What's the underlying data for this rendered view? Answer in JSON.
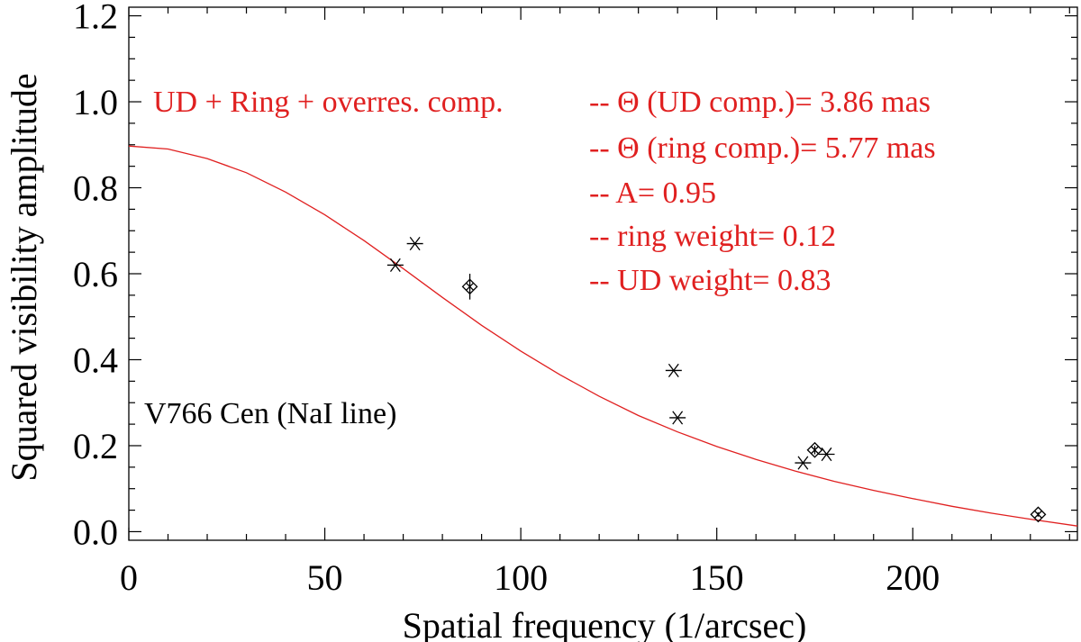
{
  "chart_data": {
    "type": "scatter",
    "object_label": "V766 Cen (NaI line)",
    "xlabel": "Spatial frequency (1/arcsec)",
    "ylabel": "Squared visibility amplitude",
    "xlim": [
      0,
      242
    ],
    "ylim": [
      -0.02,
      1.22
    ],
    "xticks": [
      0,
      50,
      100,
      150,
      200
    ],
    "xtick_labels": [
      "0",
      "50",
      "100",
      "150",
      "200"
    ],
    "yticks": [
      0.0,
      0.2,
      0.4,
      0.6,
      0.8,
      1.0,
      1.2
    ],
    "ytick_labels": [
      "0.0",
      "0.2",
      "0.4",
      "0.6",
      "0.8",
      "1.0",
      "1.2"
    ],
    "grid": false,
    "colors": {
      "axes": "#000000",
      "model": "#e02020",
      "data": "#000000"
    },
    "model": {
      "label": "UD + Ring + overres. comp.",
      "params": [
        "-- Θ (UD comp.)= 3.86 mas",
        "-- Θ (ring comp.)= 5.77 mas",
        "-- A= 0.95",
        "-- ring weight= 0.12",
        "-- UD weight= 0.83"
      ],
      "x": [
        0,
        10,
        20,
        30,
        40,
        50,
        60,
        70,
        80,
        90,
        100,
        110,
        120,
        130,
        140,
        150,
        160,
        170,
        180,
        190,
        200,
        210,
        220,
        230,
        242
      ],
      "y": [
        0.897,
        0.89,
        0.868,
        0.835,
        0.79,
        0.737,
        0.677,
        0.612,
        0.545,
        0.48,
        0.42,
        0.365,
        0.315,
        0.27,
        0.232,
        0.198,
        0.168,
        0.141,
        0.117,
        0.096,
        0.077,
        0.059,
        0.043,
        0.029,
        0.013
      ]
    },
    "series": [
      {
        "marker": "asterisk",
        "points": [
          {
            "x": 68,
            "y": 0.62
          },
          {
            "x": 73,
            "y": 0.67
          },
          {
            "x": 139,
            "y": 0.375
          },
          {
            "x": 140,
            "y": 0.265
          },
          {
            "x": 172,
            "y": 0.16
          },
          {
            "x": 178,
            "y": 0.18
          }
        ]
      },
      {
        "marker": "diamond",
        "points": [
          {
            "x": 87,
            "y": 0.57,
            "err": 0.03
          },
          {
            "x": 175,
            "y": 0.19,
            "err": 0.01
          },
          {
            "x": 232,
            "y": 0.04,
            "err": 0.005
          }
        ]
      }
    ]
  }
}
